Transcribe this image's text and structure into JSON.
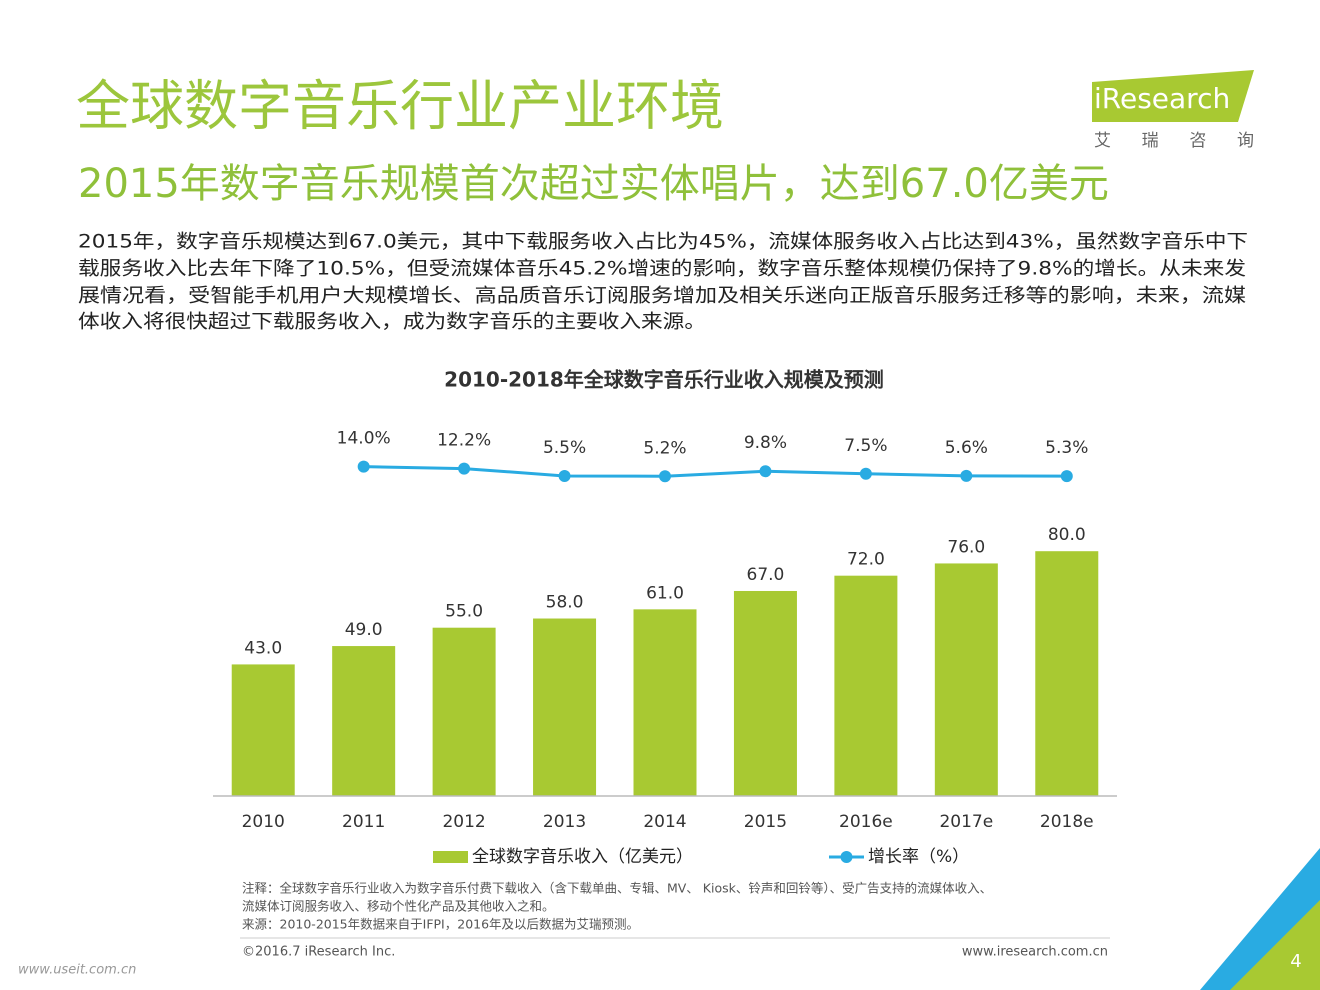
{
  "page": {
    "title": "全球数字音乐行业产业环境",
    "subtitle": "2015年数字音乐规模首次超过实体唱片，达到67.0亿美元",
    "body": [
      "2015年，数字音乐规模达到67.0美元，其中下载服务收入占比为45%，流媒体服务收入占比达到43%，虽然数字音乐中下",
      "载服务收入比去年下降了10.5%，但受流媒体音乐45.2%增速的影响，数字音乐整体规模仍保持了9.8%的增长。从未来发",
      "展情况看，受智能手机用户大规模增长、高品质音乐订阅服务增加及相关乐迷向正版音乐服务迁移等的影响，未来，流媒",
      "体收入将很快超过下载服务收入，成为数字音乐的主要收入来源。"
    ],
    "notes": [
      "注释：全球数字音乐行业收入为数字音乐付费下载收入（含下载单曲、专辑、MV、 Kiosk、铃声和回铃等）、受广告支持的流媒体收入、",
      "流媒体订阅服务收入、移动个性化产品及其他收入之和。",
      "来源：2010-2015年数据来自于IFPI，2016年及以后数据为艾瑞预测。"
    ],
    "logo": "iResearch",
    "logo_cn": "艾 瑞 咨 询",
    "footer_left": "©2016.7 iResearch Inc.",
    "footer_right": "www.iresearch.com.cn",
    "page_number": "4",
    "watermark": "www.useit.com.cn"
  },
  "chart_data": {
    "type": "bar",
    "title": "2010-2018年全球数字音乐行业收入规模及预测",
    "categories": [
      "2010",
      "2011",
      "2012",
      "2013",
      "2014",
      "2015",
      "2016e",
      "2017e",
      "2018e"
    ],
    "series": [
      {
        "name": "全球数字音乐收入（亿美元）",
        "type": "bar",
        "color": "#a8c932",
        "values": [
          43,
          49,
          55,
          58,
          61,
          67,
          72,
          76,
          80
        ],
        "value_labels": [
          "43.0",
          "49.0",
          "55.0",
          "58.0",
          "61.0",
          "67.0",
          "72.0",
          "76.0",
          "80.0"
        ]
      },
      {
        "name": "增长率（%）",
        "type": "line",
        "axis": "y2",
        "color": "#29abe2",
        "values": [
          null,
          14.0,
          12.2,
          5.5,
          5.2,
          9.8,
          7.5,
          5.6,
          5.3
        ],
        "value_labels": [
          null,
          "14.0%",
          "12.2%",
          "5.5%",
          "5.2%",
          "9.8%",
          "7.5%",
          "5.6%",
          "5.3%"
        ]
      }
    ],
    "ylim": [
      0,
      100
    ],
    "y2lim": [
      0,
      20
    ]
  }
}
